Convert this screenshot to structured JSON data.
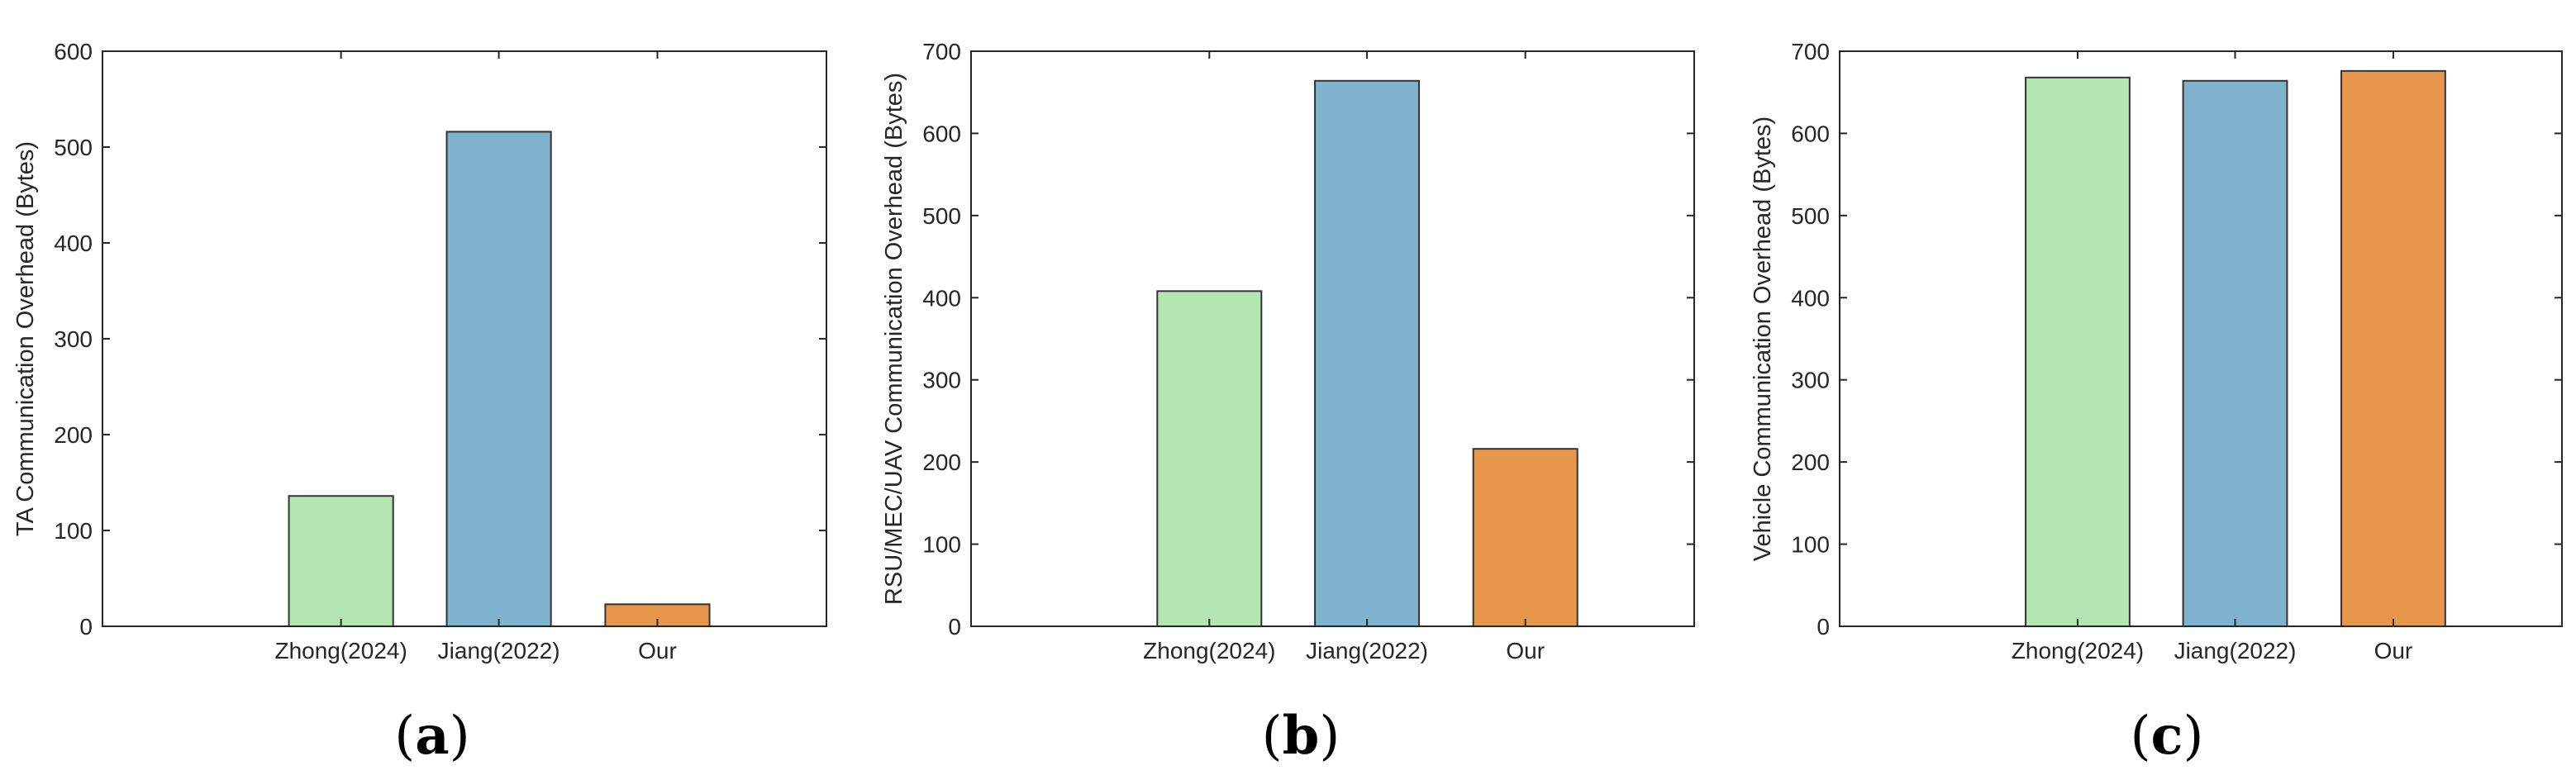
{
  "chart_data": [
    {
      "type": "bar",
      "panel_label": "a",
      "ylabel": "TA Communication Overhead (Bytes)",
      "ylim": [
        0,
        600
      ],
      "yticks": [
        0,
        100,
        200,
        300,
        400,
        500,
        600
      ],
      "categories": [
        "Zhong(2024)",
        "Jiang(2022)",
        "Our"
      ],
      "values": [
        136,
        516,
        23
      ],
      "colors": [
        "#b3e6b0",
        "#7fb2cc",
        "#e6974b"
      ]
    },
    {
      "type": "bar",
      "panel_label": "b",
      "ylabel": "RSU/MEC/UAV Communication Overhead (Bytes)",
      "ylim": [
        0,
        700
      ],
      "yticks": [
        0,
        100,
        200,
        300,
        400,
        500,
        600,
        700
      ],
      "categories": [
        "Zhong(2024)",
        "Jiang(2022)",
        "Our"
      ],
      "values": [
        408,
        664,
        216
      ],
      "colors": [
        "#b3e6b0",
        "#7fb2cc",
        "#e6974b"
      ]
    },
    {
      "type": "bar",
      "panel_label": "c",
      "ylabel": "Vehicle Communication Overhead (Bytes)",
      "ylim": [
        0,
        700
      ],
      "yticks": [
        0,
        100,
        200,
        300,
        400,
        500,
        600,
        700
      ],
      "categories": [
        "Zhong(2024)",
        "Jiang(2022)",
        "Our"
      ],
      "values": [
        668,
        664,
        676
      ],
      "colors": [
        "#b3e6b0",
        "#7fb2cc",
        "#e6974b"
      ]
    }
  ]
}
